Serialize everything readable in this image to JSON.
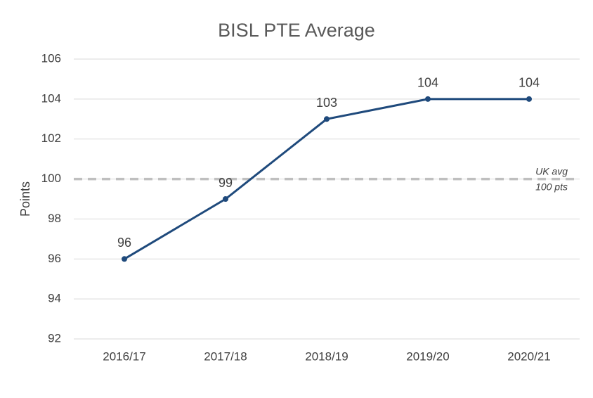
{
  "chart_data": {
    "type": "line",
    "title": "BISL PTE Average",
    "y_label": "Points",
    "categories": [
      "2016/17",
      "2017/18",
      "2018/19",
      "2019/20",
      "2020/21"
    ],
    "values": [
      96,
      99,
      103,
      104,
      104
    ],
    "color": "#1f4a7c",
    "ylim": [
      92,
      106
    ],
    "yticks": [
      92,
      94,
      96,
      98,
      100,
      102,
      104,
      106
    ],
    "grid": true,
    "reference_line": {
      "value": 100,
      "color": "#bfbfbf",
      "label": [
        "UK avg",
        "100 pts"
      ]
    }
  }
}
